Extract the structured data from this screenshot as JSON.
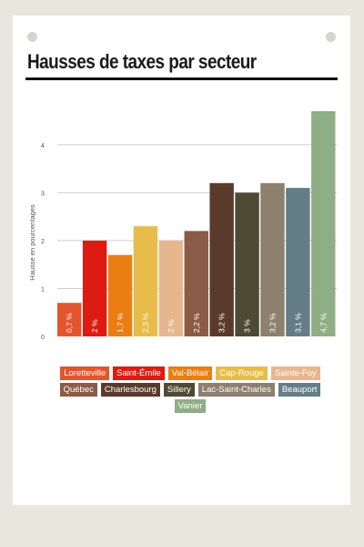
{
  "chart_data": {
    "type": "bar",
    "title": "Hausses de taxes par secteur",
    "ylabel": "Hausse en pourcentages",
    "xlabel": "",
    "ylim": [
      0,
      4.7
    ],
    "yticks": [
      0,
      1,
      2,
      3,
      4
    ],
    "grid": true,
    "legend_position": "bottom",
    "categories": [
      "Loretteville",
      "Saint-Émile",
      "Val-Bélair",
      "Cap-Rouge",
      "Sainte-Foy",
      "Québec",
      "Charlesbourg",
      "Sillery",
      "Lac-Saint-Charles",
      "Beauport",
      "Vanier"
    ],
    "values": [
      0.7,
      2,
      1.7,
      2.3,
      2,
      2.2,
      3.2,
      3,
      3.2,
      3.1,
      4.7
    ],
    "data_labels": [
      "0,7 %",
      "2 %",
      "1,7 %",
      "2,3 %",
      "2 %",
      "2,2 %",
      "3,2 %",
      "3 %",
      "3,2 %",
      "3,1 %",
      "4,7 %"
    ],
    "colors": [
      "#e4552e",
      "#de1b10",
      "#ea7e12",
      "#e8bc4a",
      "#e6b78e",
      "#8a5b46",
      "#5a3a2a",
      "#4e4a34",
      "#8d806e",
      "#637e86",
      "#8fae86"
    ]
  }
}
